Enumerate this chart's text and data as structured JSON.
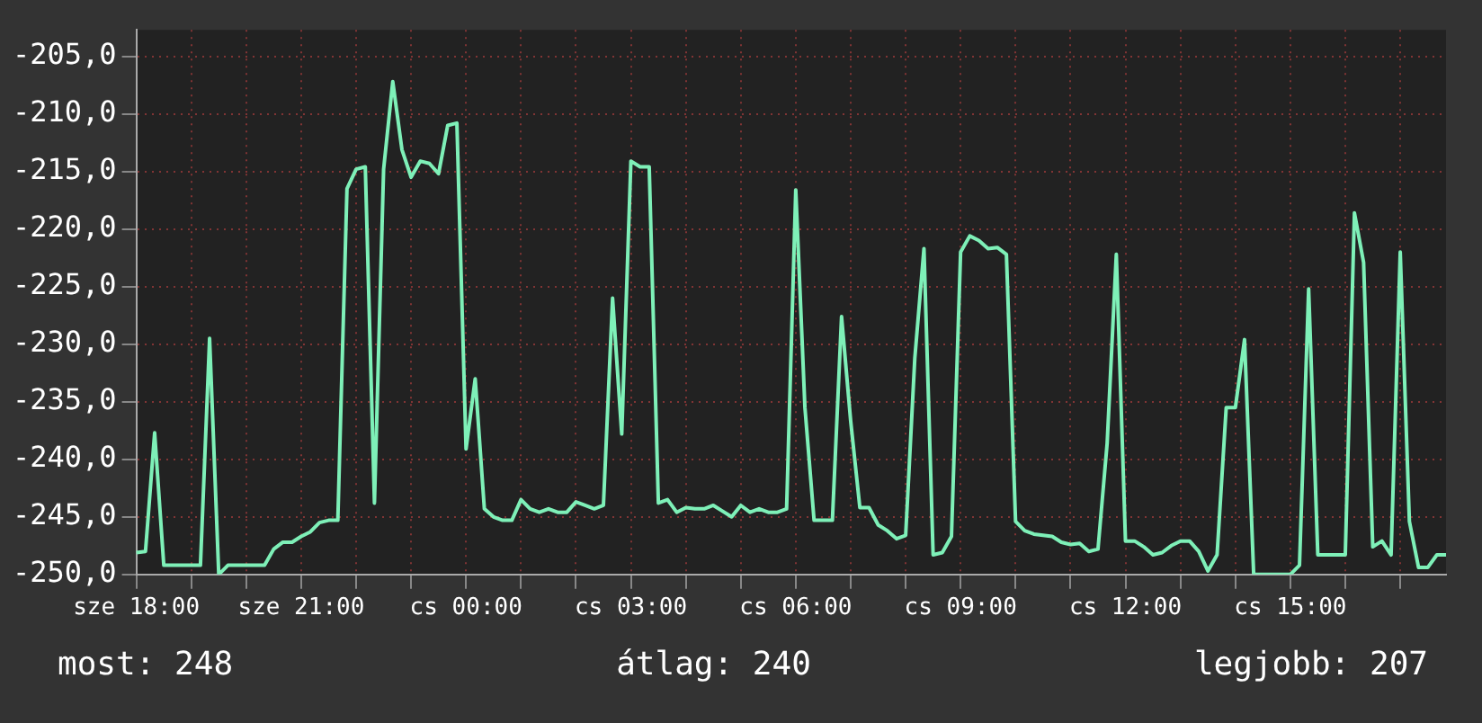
{
  "chart_data": {
    "type": "line",
    "categories": [
      "sze 18:00",
      null,
      null,
      null,
      null,
      null,
      null,
      null,
      null,
      null,
      null,
      null,
      null,
      null,
      null,
      null,
      null,
      null,
      "sze 21:00",
      null,
      null,
      null,
      null,
      null,
      null,
      null,
      null,
      null,
      null,
      null,
      null,
      null,
      null,
      null,
      null,
      null,
      "cs 00:00",
      null,
      null,
      null,
      null,
      null,
      null,
      null,
      null,
      null,
      null,
      null,
      null,
      null,
      null,
      null,
      null,
      null,
      "cs 03:00",
      null,
      null,
      null,
      null,
      null,
      null,
      null,
      null,
      null,
      null,
      null,
      null,
      null,
      null,
      null,
      null,
      null,
      "cs 06:00",
      null,
      null,
      null,
      null,
      null,
      null,
      null,
      null,
      null,
      null,
      null,
      null,
      null,
      null,
      null,
      null,
      null,
      "cs 09:00",
      null,
      null,
      null,
      null,
      null,
      null,
      null,
      null,
      null,
      null,
      null,
      null,
      null,
      null,
      null,
      null,
      null,
      "cs 12:00",
      null,
      null,
      null,
      null,
      null,
      null,
      null,
      null,
      null,
      null,
      null,
      null,
      null,
      null,
      null,
      null,
      null,
      "cs 15:00",
      null,
      null,
      null,
      null,
      null,
      null,
      null,
      null,
      null,
      null,
      null,
      null,
      null,
      null,
      null,
      null,
      null
    ],
    "series": [
      {
        "color": "#7ef0b8",
        "values": [
          -248.1,
          -248.0,
          -237.7,
          -249.2,
          -249.2,
          -249.2,
          -249.2,
          -249.2,
          -229.5,
          -250.0,
          -249.2,
          -249.2,
          -249.2,
          -249.2,
          -249.2,
          -247.8,
          -247.2,
          -247.2,
          -246.7,
          -246.3,
          -245.5,
          -245.3,
          -245.3,
          -216.5,
          -214.8,
          -214.6,
          -243.8,
          -214.8,
          -207.2,
          -213.1,
          -215.5,
          -214.1,
          -214.3,
          -215.2,
          -211.0,
          -210.8,
          -239.1,
          -233.0,
          -244.3,
          -245.0,
          -245.3,
          -245.3,
          -243.5,
          -244.3,
          -244.6,
          -244.3,
          -244.6,
          -244.6,
          -243.7,
          -244.0,
          -244.3,
          -244.0,
          -226.0,
          -237.8,
          -214.1,
          -214.6,
          -214.6,
          -243.8,
          -243.5,
          -244.6,
          -244.2,
          -244.3,
          -244.3,
          -244.0,
          -244.5,
          -245.0,
          -244.0,
          -244.6,
          -244.3,
          -244.6,
          -244.6,
          -244.3,
          -216.6,
          -235.5,
          -245.3,
          -245.3,
          -245.3,
          -227.6,
          -236.7,
          -244.2,
          -244.2,
          -245.7,
          -246.2,
          -246.9,
          -246.6,
          -231.2,
          -221.7,
          -248.3,
          -248.1,
          -246.7,
          -222.0,
          -220.6,
          -221.0,
          -221.7,
          -221.6,
          -222.2,
          -245.4,
          -246.2,
          -246.5,
          -246.6,
          -246.7,
          -247.2,
          -247.4,
          -247.3,
          -248.0,
          -247.8,
          -238.6,
          -222.2,
          -247.1,
          -247.1,
          -247.6,
          -248.3,
          -248.1,
          -247.5,
          -247.1,
          -247.1,
          -248.0,
          -249.7,
          -248.3,
          -235.5,
          -235.5,
          -229.6,
          -250.0,
          -250.0,
          -250.0,
          -250.0,
          -250.0,
          -249.2,
          -225.2,
          -248.3,
          -248.3,
          -248.3,
          -248.3,
          -218.6,
          -222.9,
          -247.6,
          -247.1,
          -248.3,
          -222.0,
          -245.4,
          -249.4,
          -249.4,
          -248.3,
          -248.3
        ]
      }
    ],
    "ylim": [
      -250,
      -202.7
    ],
    "yticks": [
      {
        "value": -250,
        "label": "-250,0"
      },
      {
        "value": -245,
        "label": "-245,0"
      },
      {
        "value": -240,
        "label": "-240,0"
      },
      {
        "value": -235,
        "label": "-235,0"
      },
      {
        "value": -230,
        "label": "-230,0"
      },
      {
        "value": -225,
        "label": "-225,0"
      },
      {
        "value": -220,
        "label": "-220,0"
      },
      {
        "value": -215,
        "label": "-215,0"
      },
      {
        "value": -210,
        "label": "-210,0"
      },
      {
        "value": -205,
        "label": "-205,0"
      }
    ],
    "grid": true,
    "annotations": [
      "most: 248",
      "átlag: 240",
      "legjobb: 207"
    ]
  }
}
